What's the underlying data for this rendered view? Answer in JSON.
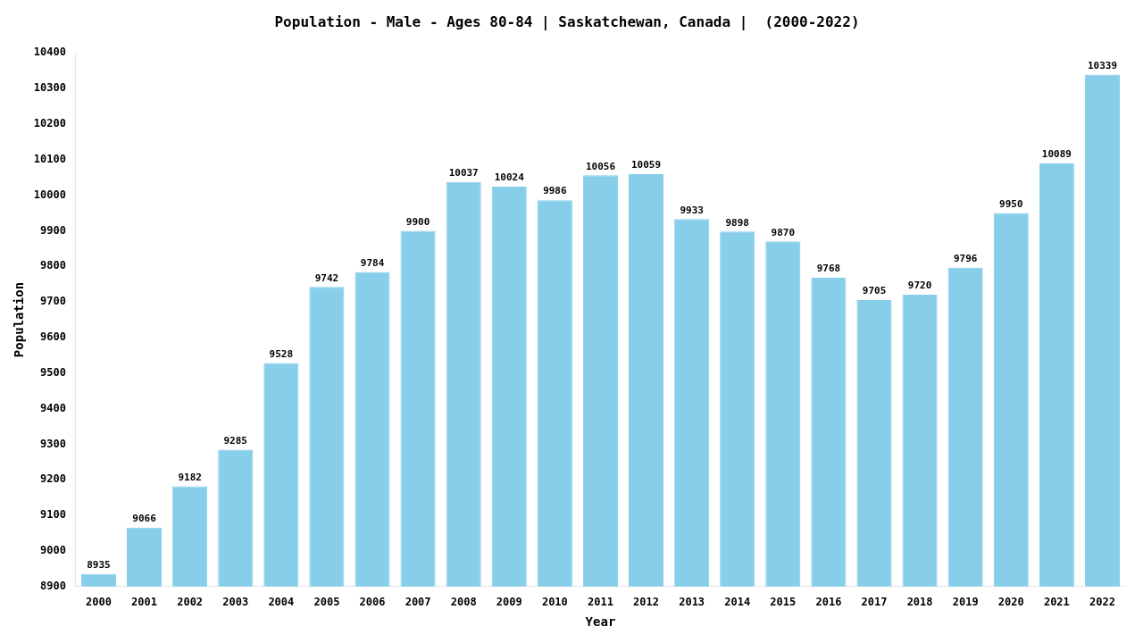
{
  "chart_data": {
    "type": "bar",
    "title": "Population - Male - Ages 80-84 | Saskatchewan, Canada |  (2000-2022)",
    "x_label": "Year",
    "y_label": "Population",
    "categories": [
      "2000",
      "2001",
      "2002",
      "2003",
      "2004",
      "2005",
      "2006",
      "2007",
      "2008",
      "2009",
      "2010",
      "2011",
      "2012",
      "2013",
      "2014",
      "2015",
      "2016",
      "2017",
      "2018",
      "2019",
      "2020",
      "2021",
      "2022"
    ],
    "values": [
      8935,
      9066,
      9182,
      9285,
      9528,
      9742,
      9784,
      9900,
      10037,
      10024,
      9986,
      10056,
      10059,
      9933,
      9898,
      9870,
      9768,
      9705,
      9720,
      9796,
      9950,
      10089,
      10339
    ],
    "color": "#87CEEB",
    "ylim": [
      8900,
      10400
    ],
    "yticks": [
      8900,
      9000,
      9100,
      9200,
      9300,
      9400,
      9500,
      9600,
      9700,
      9800,
      9900,
      10000,
      10100,
      10200,
      10300,
      10400
    ],
    "grid": false,
    "data_labels": true
  }
}
